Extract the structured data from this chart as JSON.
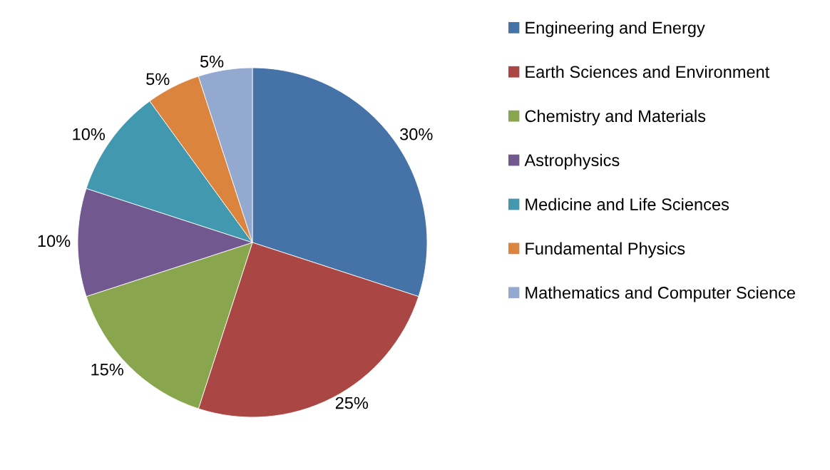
{
  "chart_data": {
    "type": "pie",
    "categories": [
      "Engineering and Energy",
      "Earth Sciences and Environment",
      "Chemistry and Materials",
      "Astrophysics",
      "Medicine and Life Sciences",
      "Fundamental Physics",
      "Mathematics and Computer Science"
    ],
    "values": [
      30,
      25,
      15,
      10,
      10,
      5,
      5
    ],
    "colors": [
      "#4572a7",
      "#aa4643",
      "#89a54e",
      "#71588f",
      "#4198af",
      "#db843d",
      "#93a9cf"
    ],
    "value_labels": [
      "30%",
      "25%",
      "15%",
      "10%",
      "10%",
      "5%",
      "5%"
    ],
    "legend": "right"
  }
}
